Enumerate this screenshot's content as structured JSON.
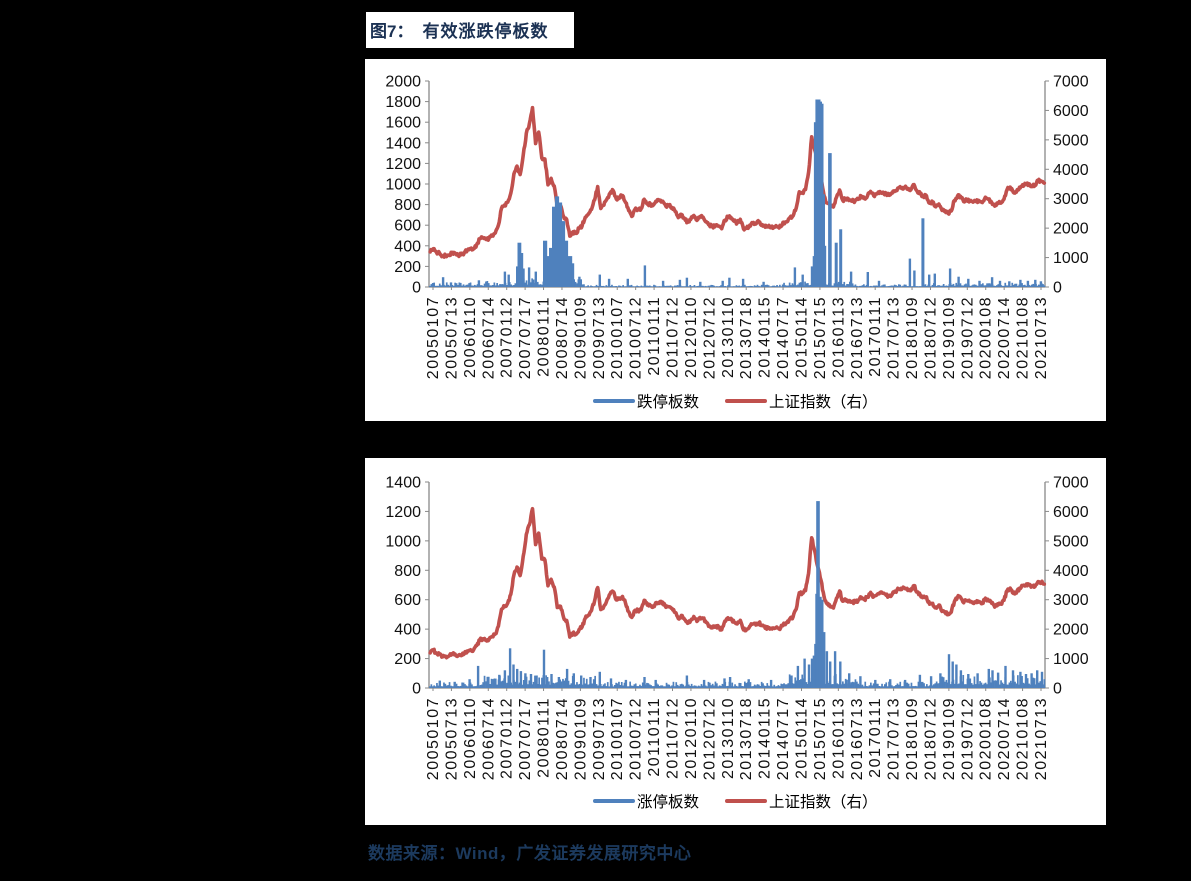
{
  "title": {
    "figure_label": "图7：",
    "figure_title": "有效涨跌停板数"
  },
  "source_note": "数据来源：Wind，广发证券发展研究中心",
  "colors": {
    "bar_blue": "#4f81bd",
    "line_red": "#c0504d",
    "title_navy": "#1b3153",
    "axis_gray": "#898989"
  },
  "chart_data": [
    {
      "type": "combo-bar-line",
      "bar_series_name": "跌停板数",
      "line_series_name": "上证指数（右）",
      "left_axis": {
        "min": 0,
        "max": 2000,
        "labels": [
          "2000",
          "1800",
          "1600",
          "1400",
          "1200",
          "1000",
          "800",
          "600",
          "400",
          "200",
          "0"
        ]
      },
      "right_axis": {
        "min": 0,
        "max": 7000,
        "labels": [
          "7000",
          "6000",
          "5000",
          "4000",
          "3000",
          "2000",
          "1000",
          "0"
        ]
      },
      "x_tick_labels": [
        "20050107",
        "20050713",
        "20060110",
        "20060714",
        "20070112",
        "20070717",
        "20080111",
        "20080714",
        "20090109",
        "20090713",
        "20100107",
        "20100712",
        "20110111",
        "20110712",
        "20120110",
        "20120712",
        "20130110",
        "20130718",
        "20140115",
        "20140717",
        "20150114",
        "20150715",
        "20160113",
        "20160713",
        "20170111",
        "20170713",
        "20180109",
        "20180712",
        "20190109",
        "20190712",
        "20200108",
        "20200714",
        "20210108",
        "20210713"
      ],
      "bar_spikes": [
        [
          2005.39,
          95
        ],
        [
          2005.6,
          45
        ],
        [
          2006.35,
          65
        ],
        [
          2007.05,
          150
        ],
        [
          2007.15,
          120
        ],
        [
          2007.38,
          200
        ],
        [
          2007.44,
          430
        ],
        [
          2007.49,
          330
        ],
        [
          2007.55,
          180
        ],
        [
          2007.7,
          190
        ],
        [
          2007.88,
          150
        ],
        [
          2008.13,
          450
        ],
        [
          2008.21,
          300
        ],
        [
          2008.29,
          380
        ],
        [
          2008.37,
          780
        ],
        [
          2008.45,
          880
        ],
        [
          2008.53,
          820
        ],
        [
          2008.61,
          640
        ],
        [
          2008.69,
          450
        ],
        [
          2008.8,
          300
        ],
        [
          2008.88,
          230
        ],
        [
          2009.05,
          100
        ],
        [
          2009.6,
          120
        ],
        [
          2009.85,
          80
        ],
        [
          2010.35,
          80
        ],
        [
          2010.81,
          210
        ],
        [
          2011.3,
          60
        ],
        [
          2011.75,
          70
        ],
        [
          2011.94,
          90
        ],
        [
          2012.3,
          50
        ],
        [
          2012.9,
          60
        ],
        [
          2013.08,
          90
        ],
        [
          2013.45,
          80
        ],
        [
          2014.0,
          50
        ],
        [
          2014.84,
          190
        ],
        [
          2015.05,
          120
        ],
        [
          2015.3,
          200
        ],
        [
          2015.36,
          300
        ],
        [
          2015.4,
          1600
        ],
        [
          2015.44,
          1820
        ],
        [
          2015.48,
          1820
        ],
        [
          2015.52,
          1800
        ],
        [
          2015.56,
          1780
        ],
        [
          2015.6,
          900
        ],
        [
          2015.64,
          400
        ],
        [
          2015.78,
          1300
        ],
        [
          2015.95,
          430
        ],
        [
          2016.07,
          560
        ],
        [
          2016.35,
          150
        ],
        [
          2016.8,
          146
        ],
        [
          2017.1,
          60
        ],
        [
          2017.93,
          276
        ],
        [
          2018.05,
          160
        ],
        [
          2018.28,
          667
        ],
        [
          2018.45,
          120
        ],
        [
          2018.6,
          130
        ],
        [
          2019.01,
          180
        ],
        [
          2019.24,
          100
        ],
        [
          2019.5,
          80
        ],
        [
          2019.8,
          60
        ],
        [
          2020.14,
          95
        ],
        [
          2020.35,
          60
        ],
        [
          2020.6,
          55
        ],
        [
          2020.9,
          70
        ],
        [
          2021.1,
          60
        ],
        [
          2021.3,
          70
        ],
        [
          2021.45,
          55
        ]
      ],
      "bar_noise_profile": [
        [
          2005.0,
          2006.5,
          45
        ],
        [
          2006.5,
          2007.5,
          60
        ],
        [
          2007.5,
          2009.2,
          85
        ],
        [
          2009.2,
          2014.5,
          22
        ],
        [
          2014.5,
          2016.5,
          55
        ],
        [
          2016.5,
          2018.5,
          28
        ],
        [
          2018.5,
          2021.6,
          42
        ]
      ]
    },
    {
      "type": "combo-bar-line",
      "bar_series_name": "涨停板数",
      "line_series_name": "上证指数（右）",
      "left_axis": {
        "min": 0,
        "max": 1400,
        "labels": [
          "1400",
          "1200",
          "1000",
          "800",
          "600",
          "400",
          "200",
          "0"
        ]
      },
      "right_axis": {
        "min": 0,
        "max": 7000,
        "labels": [
          "7000",
          "6000",
          "5000",
          "4000",
          "3000",
          "2000",
          "1000",
          "0"
        ]
      },
      "x_tick_labels": [
        "20050107",
        "20050713",
        "20060110",
        "20060714",
        "20070112",
        "20070717",
        "20080111",
        "20080714",
        "20090109",
        "20090713",
        "20100107",
        "20100712",
        "20110111",
        "20110712",
        "20120110",
        "20120712",
        "20130110",
        "20130718",
        "20140115",
        "20140717",
        "20150114",
        "20150715",
        "20160113",
        "20160713",
        "20170111",
        "20170713",
        "20180109",
        "20180712",
        "20190109",
        "20190712",
        "20200108",
        "20200714",
        "20210108",
        "20210713"
      ],
      "bar_spikes": [
        [
          2005.3,
          50
        ],
        [
          2005.7,
          42
        ],
        [
          2006.1,
          60
        ],
        [
          2006.33,
          150
        ],
        [
          2006.6,
          70
        ],
        [
          2006.9,
          90
        ],
        [
          2007.05,
          120
        ],
        [
          2007.19,
          270
        ],
        [
          2007.28,
          160
        ],
        [
          2007.38,
          130
        ],
        [
          2007.48,
          115
        ],
        [
          2007.6,
          100
        ],
        [
          2007.75,
          95
        ],
        [
          2007.9,
          85
        ],
        [
          2008.1,
          260
        ],
        [
          2008.3,
          95
        ],
        [
          2008.5,
          75
        ],
        [
          2008.72,
          130
        ],
        [
          2008.9,
          100
        ],
        [
          2009.1,
          85
        ],
        [
          2009.35,
          75
        ],
        [
          2009.6,
          110
        ],
        [
          2009.9,
          65
        ],
        [
          2010.3,
          55
        ],
        [
          2010.8,
          75
        ],
        [
          2011.1,
          55
        ],
        [
          2011.94,
          85
        ],
        [
          2012.4,
          55
        ],
        [
          2012.95,
          65
        ],
        [
          2013.1,
          75
        ],
        [
          2013.6,
          60
        ],
        [
          2014.2,
          55
        ],
        [
          2014.75,
          85
        ],
        [
          2014.92,
          150
        ],
        [
          2015.1,
          200
        ],
        [
          2015.22,
          160
        ],
        [
          2015.3,
          200
        ],
        [
          2015.35,
          220
        ],
        [
          2015.4,
          300
        ],
        [
          2015.43,
          640
        ],
        [
          2015.46,
          1270
        ],
        [
          2015.52,
          620
        ],
        [
          2015.57,
          600
        ],
        [
          2015.62,
          380
        ],
        [
          2015.7,
          250
        ],
        [
          2015.79,
          180
        ],
        [
          2015.92,
          250
        ],
        [
          2016.06,
          180
        ],
        [
          2016.3,
          100
        ],
        [
          2016.6,
          80
        ],
        [
          2017.0,
          55
        ],
        [
          2017.4,
          60
        ],
        [
          2017.8,
          55
        ],
        [
          2018.2,
          90
        ],
        [
          2018.5,
          80
        ],
        [
          2018.75,
          100
        ],
        [
          2018.98,
          230
        ],
        [
          2019.08,
          180
        ],
        [
          2019.18,
          160
        ],
        [
          2019.3,
          120
        ],
        [
          2019.5,
          95
        ],
        [
          2019.75,
          100
        ],
        [
          2020.05,
          130
        ],
        [
          2020.15,
          120
        ],
        [
          2020.3,
          105
        ],
        [
          2020.5,
          150
        ],
        [
          2020.7,
          120
        ],
        [
          2020.9,
          110
        ],
        [
          2021.05,
          95
        ],
        [
          2021.2,
          100
        ],
        [
          2021.35,
          120
        ],
        [
          2021.48,
          110
        ]
      ],
      "bar_noise_profile": [
        [
          2005.0,
          2006.5,
          45
        ],
        [
          2006.5,
          2009.5,
          90
        ],
        [
          2009.5,
          2014.5,
          44
        ],
        [
          2014.5,
          2016.5,
          100
        ],
        [
          2016.5,
          2018.7,
          45
        ],
        [
          2018.7,
          2021.6,
          90
        ]
      ]
    }
  ],
  "sse_line": {
    "start_year": 2005,
    "monthly_values": [
      1192,
      1300,
      1181,
      1159,
      1060,
      1081,
      1083,
      1163,
      1156,
      1092,
      1099,
      1161,
      1258,
      1299,
      1298,
      1441,
      1641,
      1672,
      1613,
      1658,
      1752,
      1837,
      2099,
      2675,
      2786,
      2881,
      3184,
      3841,
      4109,
      3821,
      4471,
      5218,
      5552,
      6092,
      4872,
      5262,
      4383,
      4348,
      3473,
      3693,
      3433,
      2736,
      2776,
      2397,
      2294,
      1729,
      1871,
      1821,
      1991,
      2083,
      2373,
      2478,
      2632,
      2959,
      3412,
      2668,
      2779,
      2995,
      3195,
      3277,
      2989,
      3052,
      3109,
      2871,
      2592,
      2398,
      2638,
      2639,
      2656,
      2979,
      2820,
      2808,
      2790,
      2905,
      2928,
      2911,
      2743,
      2762,
      2701,
      2567,
      2359,
      2468,
      2333,
      2199,
      2293,
      2428,
      2262,
      2396,
      2372,
      2225,
      2103,
      2047,
      2086,
      2068,
      1980,
      2269,
      2385,
      2365,
      2236,
      2177,
      2300,
      1979,
      1993,
      2098,
      2174,
      2141,
      2220,
      2116,
      2033,
      2056,
      2033,
      2026,
      2039,
      2048,
      2201,
      2217,
      2363,
      2420,
      2682,
      3234,
      3210,
      3310,
      3900,
      5105,
      4650,
      4100,
      3663,
      3100,
      2850,
      2760,
      2720,
      3050,
      3296,
      2950,
      3003,
      2938,
      2916,
      2929,
      2979,
      3085,
      3004,
      3100,
      3250,
      3103,
      3159,
      3241,
      3222,
      3154,
      3117,
      3192,
      3273,
      3360,
      3348,
      3393,
      3317,
      3307,
      3480,
      3259,
      3168,
      3082,
      3095,
      2847,
      2876,
      2725,
      2821,
      2602,
      2588,
      2493,
      2584,
      2940,
      3090,
      3078,
      2898,
      2978,
      2932,
      2886,
      2905,
      2929,
      2871,
      3050,
      2976,
      2880,
      2750,
      2860,
      2852,
      2984,
      3310,
      3395,
      3218,
      3224,
      3391,
      3473,
      3483,
      3509,
      3441,
      3446,
      3615,
      3591,
      3530
    ]
  }
}
